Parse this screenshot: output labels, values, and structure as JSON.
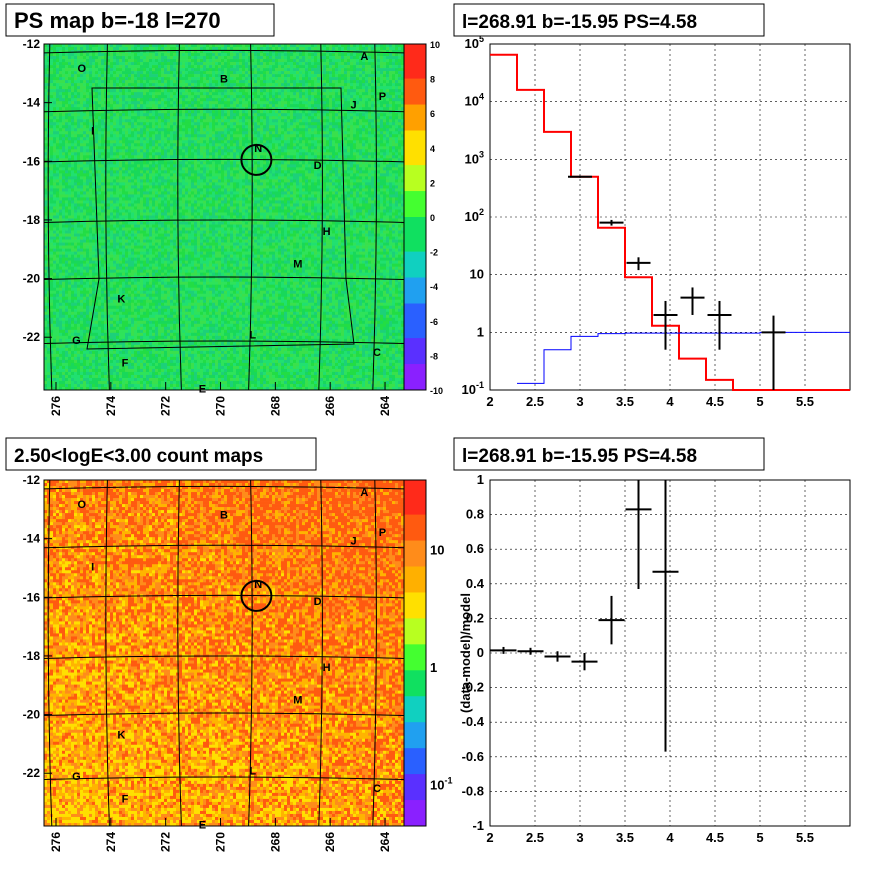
{
  "chart_data": [
    {
      "type": "heatmap",
      "title": "PS map b=-18 l=270",
      "x_ticks": [
        "276",
        "274",
        "272",
        "270",
        "268",
        "266",
        "264"
      ],
      "y_ticks": [
        "-12",
        "-14",
        "-16",
        "-18",
        "-20",
        "-22"
      ],
      "colorbar_ticks": [
        "10",
        "8",
        "6",
        "4",
        "2",
        "0",
        "-2",
        "-4",
        "-6",
        "-8",
        "-10"
      ],
      "zlim": [
        -10,
        10
      ],
      "dominant_color": "#22dd44",
      "source_labels": [
        "O",
        "A",
        "B",
        "J",
        "P",
        "I",
        "N",
        "D",
        "H",
        "M",
        "K",
        "G",
        "L",
        "C",
        "F",
        "E"
      ]
    },
    {
      "type": "line",
      "title": "l=268.91 b=-15.95 PS=4.58",
      "x_ticks": [
        "2",
        "2.5",
        "3",
        "3.5",
        "4",
        "4.5",
        "5",
        "5.5"
      ],
      "y_ticks": [
        "10-1",
        "1",
        "10",
        "102",
        "103",
        "104",
        "105"
      ],
      "xlim": [
        2,
        6
      ],
      "ylim": [
        0.1,
        100000
      ],
      "y_scale": "log",
      "grid": true,
      "series": [
        {
          "color": "#ff0000",
          "x": [
            2.0,
            2.3,
            2.6,
            2.9,
            3.2,
            3.5,
            3.8,
            4.1,
            4.4,
            4.7,
            5.0
          ],
          "values": [
            65000,
            16000,
            3000,
            500,
            65,
            9,
            1.3,
            0.35,
            0.15,
            0.1,
            0.1
          ]
        },
        {
          "color": "#0000ff",
          "x": [
            2.3,
            2.6,
            2.9,
            3.2,
            3.5,
            5.0
          ],
          "values": [
            0.13,
            0.5,
            0.85,
            0.95,
            0.97,
            1.0
          ]
        },
        {
          "color": "#000000",
          "points": [
            {
              "x": 3.0,
              "y": 500,
              "err": 20
            },
            {
              "x": 3.35,
              "y": 80,
              "err": 9
            },
            {
              "x": 3.65,
              "y": 16,
              "err": 4
            },
            {
              "x": 3.95,
              "y": 2,
              "err": 1.5
            },
            {
              "x": 4.25,
              "y": 4,
              "err": 2
            },
            {
              "x": 4.55,
              "y": 2,
              "err": 1.5
            },
            {
              "x": 5.15,
              "y": 1,
              "err": 0.95
            }
          ]
        }
      ]
    },
    {
      "type": "heatmap",
      "title": "2.50<logE<3.00 count maps",
      "x_ticks": [
        "276",
        "274",
        "272",
        "270",
        "268",
        "266",
        "264"
      ],
      "y_ticks": [
        "-12",
        "-14",
        "-16",
        "-18",
        "-20",
        "-22"
      ],
      "colorbar_ticks": [
        "10",
        "1",
        "10-1"
      ],
      "dominant_color": "#ff8c1a",
      "source_labels": [
        "O",
        "A",
        "B",
        "J",
        "P",
        "I",
        "N",
        "D",
        "H",
        "M",
        "K",
        "G",
        "L",
        "C",
        "F",
        "E"
      ]
    },
    {
      "type": "scatter",
      "title": "l=268.91 b=-15.95 PS=4.58",
      "ylabel": "(data-model)/model",
      "x_ticks": [
        "2",
        "2.5",
        "3",
        "3.5",
        "4",
        "4.5",
        "5",
        "5.5"
      ],
      "y_ticks": [
        "1",
        "0.8",
        "0.6",
        "0.4",
        "0.2",
        "0",
        "-0.2",
        "-0.4",
        "-0.6",
        "-0.8",
        "-1"
      ],
      "xlim": [
        2,
        6
      ],
      "ylim": [
        -1,
        1
      ],
      "grid": true,
      "points": [
        {
          "x": 2.15,
          "y": 0.015,
          "err": 0.02
        },
        {
          "x": 2.45,
          "y": 0.01,
          "err": 0.02
        },
        {
          "x": 2.75,
          "y": -0.02,
          "err": 0.03
        },
        {
          "x": 3.05,
          "y": -0.05,
          "err": 0.05
        },
        {
          "x": 3.35,
          "y": 0.19,
          "err": 0.14
        },
        {
          "x": 3.65,
          "y": 0.83,
          "err": 0.46
        },
        {
          "x": 3.95,
          "y": 0.47,
          "err": 1.04
        }
      ]
    }
  ]
}
